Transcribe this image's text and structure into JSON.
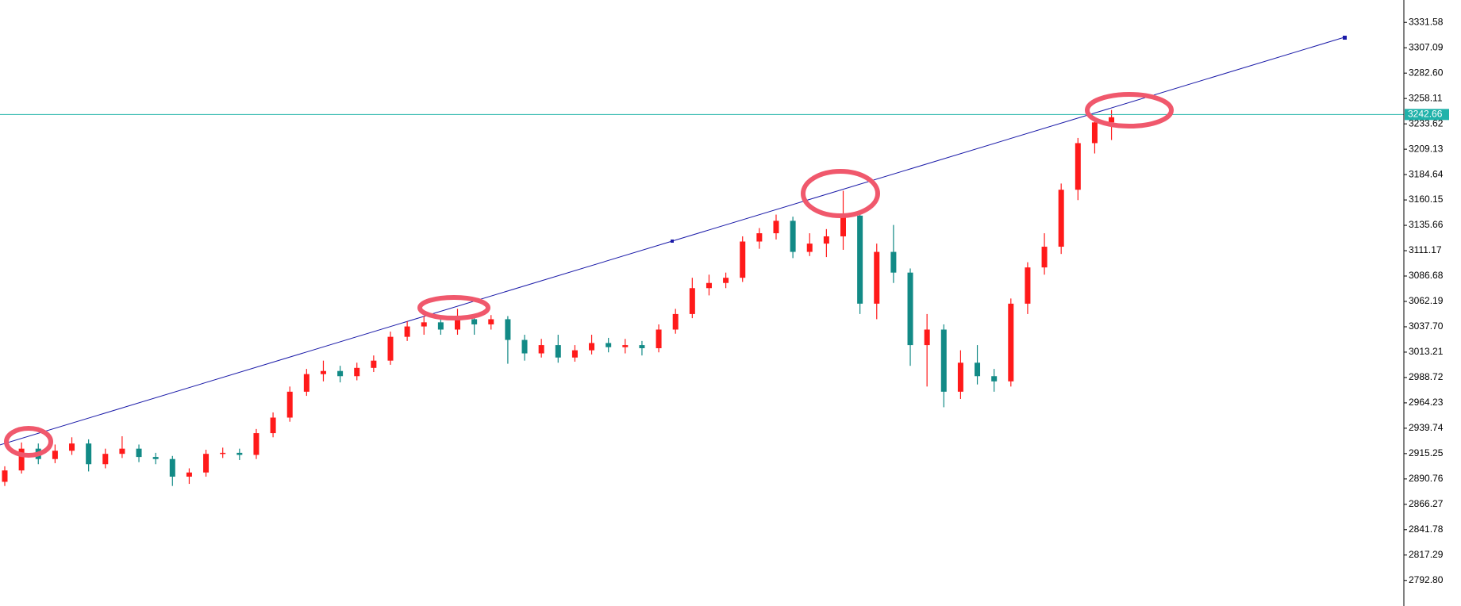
{
  "chart_data": {
    "type": "candlestick",
    "ylim": [
      2768.1,
      3353.2
    ],
    "yticks": [
      3331.58,
      3307.09,
      {
        "value": 3282.6,
        "label": "3282.60"
      },
      3258.11,
      3233.62,
      3209.13,
      3184.64,
      3160.15,
      3135.66,
      3111.17,
      3086.68,
      3062.19,
      {
        "value": 3037.7,
        "label": "3037.70"
      },
      3013.21,
      2988.72,
      2964.23,
      2939.74,
      2915.25,
      2890.76,
      2866.27,
      2841.78,
      2817.29,
      {
        "value": 2792.8,
        "label": "2792.80"
      }
    ],
    "up_color": "#ff1a1a",
    "down_color": "#128a86",
    "open": [
      2888,
      2899,
      2920,
      2910,
      2918,
      2925,
      2905,
      2915,
      2920,
      2912,
      2910,
      2893,
      2897,
      2915,
      2916,
      2914,
      2935,
      2950,
      2975,
      2992,
      2995,
      2990,
      2998,
      3005,
      3028,
      3038,
      3042,
      3035,
      3045,
      3040,
      3045,
      3025,
      3012,
      3020,
      3008,
      3015,
      3022,
      3018,
      3020,
      3017,
      3035,
      3050,
      3075,
      3080,
      3085,
      3120,
      3128,
      3140,
      3110,
      3118,
      3125,
      3145,
      3060,
      3110,
      3090,
      3020,
      3035,
      2975,
      3003,
      2990,
      2985,
      3060,
      3095,
      3115,
      3170,
      3215,
      3235
    ],
    "high": [
      2903,
      2926,
      2925,
      2924,
      2931,
      2929,
      2920,
      2932,
      2924,
      2916,
      2913,
      2901,
      2919,
      2921,
      2920,
      2939,
      2955,
      2980,
      2997,
      3005,
      3000,
      3003,
      3010,
      3033,
      3043,
      3048,
      3047,
      3055,
      3050,
      3049,
      3048,
      3030,
      3026,
      3030,
      3020,
      3030,
      3027,
      3026,
      3024,
      3040,
      3055,
      3085,
      3088,
      3090,
      3125,
      3133,
      3146,
      3144,
      3128,
      3132,
      3169,
      3148,
      3118,
      3136,
      3094,
      3050,
      3040,
      3015,
      3020,
      2997,
      3065,
      3100,
      3128,
      3176,
      3220,
      3240,
      3247
    ],
    "low": [
      2884,
      2896,
      2905,
      2906,
      2914,
      2898,
      2901,
      2911,
      2907,
      2905,
      2884,
      2886,
      2893,
      2911,
      2909,
      2910,
      2931,
      2946,
      2971,
      2985,
      2984,
      2986,
      2994,
      3001,
      3024,
      3030,
      3030,
      3030,
      3030,
      3035,
      3002,
      3005,
      3008,
      3003,
      3004,
      3011,
      3013,
      3012,
      3010,
      3013,
      3031,
      3046,
      3068,
      3075,
      3081,
      3113,
      3122,
      3104,
      3106,
      3105,
      3112,
      3050,
      3045,
      3080,
      3000,
      2980,
      2960,
      2968,
      2982,
      2975,
      2980,
      3050,
      3088,
      3108,
      3160,
      3205,
      3218
    ],
    "close": [
      2899,
      2920,
      2910,
      2918,
      2925,
      2905,
      2915,
      2920,
      2912,
      2910,
      2893,
      2897,
      2915,
      2916,
      2914,
      2935,
      2950,
      2975,
      2992,
      2995,
      2990,
      2998,
      3005,
      3028,
      3038,
      3042,
      3035,
      3045,
      3040,
      3045,
      3025,
      3012,
      3020,
      3008,
      3015,
      3022,
      3018,
      3020,
      3017,
      3035,
      3050,
      3075,
      3080,
      3085,
      3120,
      3128,
      3140,
      3110,
      3118,
      3125,
      3145,
      3060,
      3110,
      3090,
      3020,
      3035,
      2975,
      3003,
      2990,
      2985,
      3060,
      3095,
      3115,
      3170,
      3215,
      3235,
      3240
    ],
    "price_line": {
      "value": 3242.66,
      "color": "#20b2aa"
    },
    "trendline": {
      "values": [
        2923.6,
        3317.2
      ],
      "color": "#1a1aa8"
    }
  }
}
